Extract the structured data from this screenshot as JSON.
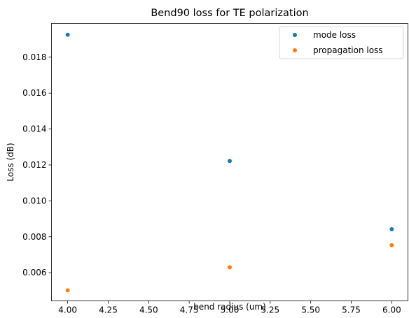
{
  "chart_data": {
    "type": "scatter",
    "title": "Bend90 loss for TE polarization",
    "xlabel": "bend radius (um)",
    "ylabel": "Loss (dB)",
    "xlim": [
      3.9,
      6.1
    ],
    "ylim": [
      0.00443,
      0.01988
    ],
    "x_ticks": [
      "4.00",
      "4.25",
      "4.50",
      "4.75",
      "5.00",
      "5.25",
      "5.50",
      "5.75",
      "6.00"
    ],
    "y_ticks": [
      "0.006",
      "0.008",
      "0.010",
      "0.012",
      "0.014",
      "0.016",
      "0.018"
    ],
    "grid": false,
    "legend_position": "top-right",
    "series": [
      {
        "name": "mode loss",
        "color": "#1f77b4",
        "x": [
          4.0,
          5.0,
          6.0
        ],
        "y": [
          0.01925,
          0.01222,
          0.00842
        ]
      },
      {
        "name": "propagation loss",
        "color": "#ff7f0e",
        "x": [
          4.0,
          5.0,
          6.0
        ],
        "y": [
          0.00502,
          0.0063,
          0.00753
        ]
      }
    ]
  }
}
